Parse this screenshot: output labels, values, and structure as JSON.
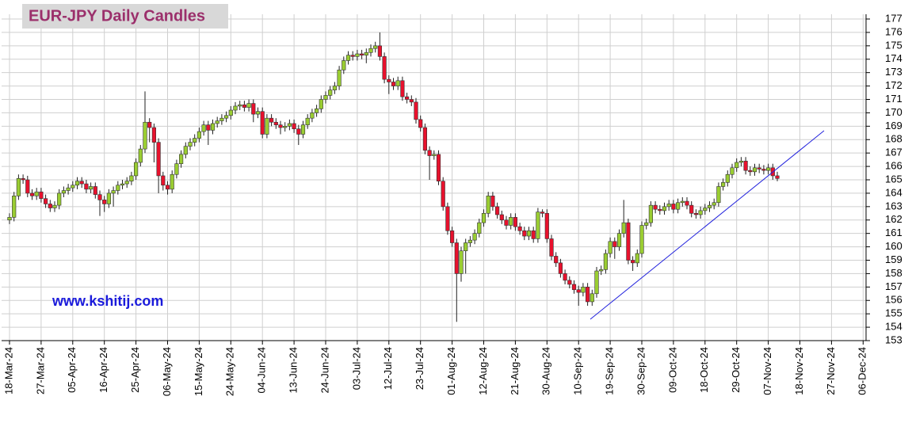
{
  "chart_data": {
    "type": "candlestick",
    "title": "EUR-JPY Daily  Candles",
    "watermark": "www.kshitij.com",
    "up_color": "#9acd32",
    "down_color": "#e8112d",
    "grid": true,
    "ylim": [
      153,
      177
    ],
    "yticks": [
      153,
      154,
      155,
      156,
      157,
      158,
      159,
      160,
      161,
      162,
      163,
      164,
      165,
      166,
      167,
      168,
      169,
      170,
      171,
      172,
      173,
      174,
      175,
      176,
      177
    ],
    "categories": [
      "18-Mar-24",
      null,
      null,
      null,
      null,
      null,
      null,
      "27-Mar-24",
      null,
      null,
      null,
      null,
      null,
      null,
      "05-Apr-24",
      null,
      null,
      null,
      null,
      null,
      null,
      "16-Apr-24",
      null,
      null,
      null,
      null,
      null,
      null,
      "25-Apr-24",
      null,
      null,
      null,
      null,
      null,
      null,
      "06-May-24",
      null,
      null,
      null,
      null,
      null,
      null,
      "15-May-24",
      null,
      null,
      null,
      null,
      null,
      null,
      "24-May-24",
      null,
      null,
      null,
      null,
      null,
      null,
      "04-Jun-24",
      null,
      null,
      null,
      null,
      null,
      null,
      "13-Jun-24",
      null,
      null,
      null,
      null,
      null,
      null,
      "24-Jun-24",
      null,
      null,
      null,
      null,
      null,
      null,
      "03-Jul-24",
      null,
      null,
      null,
      null,
      null,
      null,
      "12-Jul-24",
      null,
      null,
      null,
      null,
      null,
      null,
      "23-Jul-24",
      null,
      null,
      null,
      null,
      null,
      null,
      "01-Aug-24",
      null,
      null,
      null,
      null,
      null,
      null,
      "12-Aug-24",
      null,
      null,
      null,
      null,
      null,
      null,
      "21-Aug-24",
      null,
      null,
      null,
      null,
      null,
      null,
      "30-Aug-24",
      null,
      null,
      null,
      null,
      null,
      null,
      "10-Sep-24",
      null,
      null,
      null,
      null,
      null,
      null,
      "19-Sep-24",
      null,
      null,
      null,
      null,
      null,
      null,
      "30-Sep-24",
      null,
      null,
      null,
      null,
      null,
      null,
      "09-Oct-24",
      null,
      null,
      null,
      null,
      null,
      null,
      "18-Oct-24",
      null,
      null,
      null,
      null,
      null,
      null,
      "29-Oct-24",
      null,
      null,
      null,
      null,
      null,
      null,
      "07-Nov-24",
      null,
      null,
      null,
      null,
      null,
      null,
      "18-Nov-24",
      null,
      null,
      null,
      null,
      null,
      null,
      "27-Nov-24",
      null,
      null,
      null,
      null,
      null,
      null,
      "06-Dec-24"
    ],
    "open": [
      162.0,
      162.2,
      163.8,
      165.1,
      165.0,
      164.0,
      163.8,
      164.1,
      163.6,
      163.2,
      162.9,
      163.1,
      164.0,
      164.2,
      164.4,
      164.6,
      164.9,
      164.7,
      164.3,
      164.5,
      163.9,
      163.5,
      163.2,
      164.0,
      164.2,
      164.6,
      164.7,
      164.9,
      165.3,
      166.3,
      167.3,
      169.3,
      168.9,
      167.8,
      165.3,
      164.6,
      164.3,
      165.4,
      166.2,
      166.9,
      167.5,
      167.8,
      168.1,
      168.6,
      169.1,
      168.7,
      169.2,
      169.4,
      169.6,
      169.8,
      170.2,
      170.5,
      170.6,
      170.4,
      170.7,
      169.9,
      170.1,
      168.4,
      169.6,
      169.3,
      169.1,
      168.9,
      169.0,
      169.2,
      168.8,
      168.4,
      169.1,
      169.6,
      170.0,
      170.3,
      171.0,
      171.3,
      171.7,
      172.0,
      173.2,
      173.9,
      174.3,
      174.2,
      174.4,
      174.3,
      174.5,
      174.8,
      175.0,
      174.2,
      172.5,
      172.3,
      172.0,
      172.4,
      171.2,
      171.0,
      170.8,
      169.5,
      168.9,
      167.2,
      166.8,
      166.9,
      164.9,
      163.0,
      161.2,
      160.3,
      158.0,
      159.7,
      160.3,
      160.5,
      161.0,
      161.8,
      162.5,
      163.8,
      163.0,
      162.4,
      162.0,
      161.6,
      162.2,
      161.5,
      161.2,
      160.8,
      161.2,
      160.6,
      162.6,
      162.5,
      160.6,
      159.3,
      158.8,
      158.0,
      157.5,
      157.2,
      156.8,
      156.6,
      157.0,
      155.9,
      156.5,
      158.2,
      158.3,
      159.5,
      160.4,
      160.0,
      161.0,
      161.8,
      159.0,
      158.8,
      159.5,
      161.6,
      161.8,
      163.1,
      162.8,
      162.7,
      163.0,
      163.2,
      162.8,
      163.3,
      163.4,
      163.1,
      162.5,
      162.4,
      162.7,
      162.9,
      163.1,
      163.3,
      164.5,
      164.8,
      165.4,
      165.9,
      166.3,
      166.4,
      165.7,
      165.6,
      165.9,
      165.8,
      165.7,
      165.9,
      165.3,
      null,
      null,
      null,
      null,
      null,
      null,
      null,
      null,
      null,
      null,
      null,
      null,
      null,
      null,
      null,
      null,
      null,
      null,
      null
    ],
    "high": [
      162.5,
      164.1,
      165.4,
      165.4,
      165.3,
      164.3,
      164.4,
      164.4,
      163.9,
      163.5,
      163.4,
      164.3,
      164.5,
      164.7,
      164.9,
      165.2,
      165.2,
      165.0,
      164.8,
      164.8,
      164.2,
      163.8,
      164.3,
      164.5,
      164.9,
      165.0,
      165.2,
      165.6,
      166.6,
      167.6,
      171.6,
      169.6,
      169.2,
      168.1,
      165.6,
      164.9,
      165.7,
      166.5,
      167.2,
      167.8,
      168.1,
      168.4,
      168.9,
      169.4,
      169.4,
      169.5,
      169.7,
      169.9,
      170.1,
      170.5,
      170.8,
      170.9,
      170.9,
      171.0,
      171.0,
      170.4,
      170.4,
      169.9,
      169.9,
      169.6,
      169.4,
      169.3,
      169.5,
      169.5,
      169.1,
      169.4,
      169.9,
      170.3,
      170.6,
      171.3,
      171.6,
      172.0,
      172.3,
      173.5,
      174.2,
      174.6,
      174.6,
      174.7,
      174.7,
      174.8,
      175.1,
      175.3,
      176.0,
      174.5,
      172.8,
      172.6,
      172.7,
      172.7,
      171.5,
      171.3,
      171.1,
      169.8,
      169.2,
      167.5,
      167.2,
      167.2,
      165.2,
      163.3,
      161.5,
      160.6,
      160.0,
      160.6,
      160.8,
      161.3,
      162.1,
      162.8,
      164.1,
      164.1,
      163.3,
      162.7,
      162.3,
      162.5,
      162.5,
      161.8,
      161.5,
      161.5,
      161.5,
      162.9,
      162.8,
      162.8,
      160.9,
      159.6,
      159.1,
      158.3,
      157.8,
      157.5,
      157.1,
      157.3,
      157.3,
      156.8,
      158.5,
      158.6,
      159.8,
      160.7,
      160.7,
      161.3,
      163.5,
      162.1,
      159.3,
      159.8,
      161.9,
      162.1,
      163.4,
      163.4,
      163.1,
      163.3,
      163.5,
      163.5,
      163.6,
      163.7,
      163.7,
      163.4,
      162.8,
      163.0,
      163.2,
      163.4,
      163.6,
      164.8,
      165.1,
      165.7,
      166.2,
      166.6,
      166.7,
      166.7,
      166.0,
      166.2,
      166.2,
      166.1,
      166.2,
      166.2,
      165.6,
      null,
      null,
      null,
      null,
      null,
      null,
      null,
      null,
      null,
      null,
      null,
      null,
      null,
      null,
      null,
      null,
      null,
      null,
      null
    ],
    "low": [
      161.7,
      161.9,
      163.5,
      164.7,
      163.7,
      163.5,
      163.5,
      163.3,
      162.9,
      162.6,
      162.6,
      162.8,
      163.7,
      163.9,
      164.1,
      164.3,
      164.4,
      164.0,
      164.0,
      163.6,
      162.3,
      162.6,
      162.9,
      163.0,
      163.9,
      164.3,
      164.4,
      164.6,
      165.0,
      166.0,
      167.0,
      167.8,
      166.3,
      164.0,
      164.2,
      163.9,
      164.0,
      165.1,
      165.9,
      166.6,
      167.2,
      167.5,
      167.8,
      168.3,
      167.6,
      168.4,
      168.9,
      169.1,
      169.3,
      169.5,
      169.9,
      170.2,
      170.1,
      170.1,
      169.3,
      169.6,
      168.1,
      168.1,
      169.0,
      168.8,
      168.4,
      168.6,
      168.7,
      168.5,
      167.6,
      168.1,
      168.8,
      169.3,
      169.7,
      170.0,
      170.7,
      171.0,
      171.4,
      171.7,
      172.9,
      173.6,
      173.9,
      173.9,
      174.0,
      173.7,
      174.2,
      174.5,
      173.9,
      172.2,
      171.4,
      171.7,
      171.7,
      170.9,
      170.7,
      170.5,
      169.2,
      168.6,
      166.9,
      165.0,
      166.5,
      164.6,
      162.7,
      160.9,
      160.0,
      154.4,
      157.4,
      158.0,
      160.0,
      160.2,
      160.7,
      161.5,
      162.2,
      162.7,
      162.1,
      161.7,
      161.3,
      161.3,
      161.2,
      160.9,
      160.5,
      160.5,
      160.3,
      160.3,
      162.2,
      160.3,
      159.0,
      158.5,
      157.7,
      157.2,
      156.9,
      156.5,
      155.6,
      156.3,
      155.6,
      155.6,
      156.2,
      157.9,
      158.0,
      159.2,
      159.1,
      159.7,
      160.7,
      158.7,
      158.2,
      158.5,
      159.2,
      161.3,
      161.5,
      162.5,
      162.4,
      162.4,
      162.7,
      162.5,
      162.5,
      163.0,
      162.8,
      162.2,
      162.1,
      162.1,
      162.4,
      162.6,
      162.8,
      163.0,
      164.2,
      164.5,
      165.1,
      165.6,
      166.0,
      165.4,
      165.3,
      165.3,
      165.5,
      165.4,
      165.4,
      165.0,
      164.9,
      null,
      null,
      null,
      null,
      null,
      null,
      null,
      null,
      null,
      null,
      null,
      null,
      null,
      null,
      null,
      null,
      null,
      null,
      null
    ],
    "close": [
      162.2,
      163.8,
      165.1,
      165.0,
      164.0,
      163.8,
      164.1,
      163.6,
      163.2,
      162.9,
      163.1,
      164.0,
      164.2,
      164.4,
      164.6,
      164.9,
      164.7,
      164.3,
      164.5,
      163.9,
      163.5,
      163.2,
      164.0,
      164.2,
      164.6,
      164.7,
      164.9,
      165.3,
      166.3,
      167.3,
      169.3,
      168.9,
      167.8,
      165.3,
      164.6,
      164.3,
      165.4,
      166.2,
      166.9,
      167.5,
      167.8,
      168.1,
      168.6,
      169.1,
      168.7,
      169.2,
      169.4,
      169.6,
      169.8,
      170.2,
      170.5,
      170.6,
      170.4,
      170.7,
      169.9,
      170.1,
      168.4,
      169.6,
      169.3,
      169.1,
      168.9,
      169.0,
      169.2,
      168.8,
      168.4,
      169.1,
      169.6,
      170.0,
      170.3,
      171.0,
      171.3,
      171.7,
      172.0,
      173.2,
      173.9,
      174.3,
      174.2,
      174.4,
      174.3,
      174.5,
      174.8,
      175.0,
      174.2,
      172.5,
      172.3,
      172.0,
      172.4,
      171.2,
      171.0,
      170.8,
      169.5,
      168.9,
      167.2,
      166.8,
      166.9,
      164.9,
      163.0,
      161.2,
      160.3,
      158.0,
      159.7,
      160.3,
      160.5,
      161.0,
      161.8,
      162.5,
      163.8,
      163.0,
      162.4,
      162.0,
      161.6,
      162.2,
      161.5,
      161.2,
      160.8,
      161.2,
      160.6,
      162.6,
      162.5,
      160.6,
      159.3,
      158.8,
      158.0,
      157.5,
      157.2,
      156.8,
      156.6,
      157.0,
      155.9,
      156.5,
      158.2,
      158.3,
      159.5,
      160.4,
      160.0,
      161.0,
      161.8,
      159.0,
      158.8,
      159.5,
      161.6,
      161.8,
      163.1,
      162.8,
      162.7,
      163.0,
      163.2,
      162.8,
      163.3,
      163.4,
      163.1,
      162.5,
      162.4,
      162.7,
      162.9,
      163.1,
      163.3,
      164.5,
      164.8,
      165.4,
      165.9,
      166.3,
      166.4,
      165.7,
      165.6,
      165.9,
      165.8,
      165.7,
      165.9,
      165.3,
      165.1,
      null,
      null,
      null,
      null,
      null,
      null,
      null,
      null,
      null,
      null,
      null,
      null,
      null,
      null,
      null,
      null,
      null,
      null,
      null
    ]
  }
}
